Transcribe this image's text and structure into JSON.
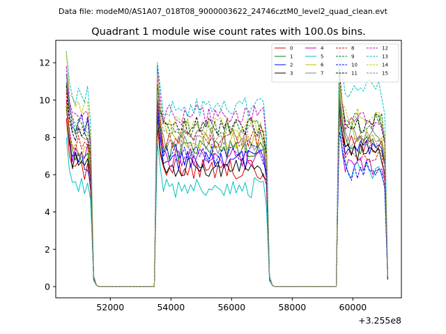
{
  "chart_data": {
    "type": "line",
    "suptitle": "Data file: modeM0/AS1A07_018T08_9000003622_24746cztM0_level2_quad_clean.evt",
    "title": "Quadrant 1 module wise count rates with 100.0s bins.",
    "xlabel": "",
    "ylabel": "",
    "x_offset_label": "+3.255e8",
    "xlim": [
      50200,
      61600
    ],
    "ylim": [
      -0.6,
      13.2
    ],
    "xticks": [
      52000,
      54000,
      56000,
      58000,
      60000
    ],
    "xtick_labels": [
      "52000",
      "54000",
      "56000",
      "58000",
      "60000"
    ],
    "yticks": [
      0,
      2,
      4,
      6,
      8,
      10,
      12
    ],
    "ytick_labels": [
      "0",
      "2",
      "4",
      "6",
      "8",
      "10",
      "12"
    ],
    "bin_seconds": 100,
    "time_range": [
      50550,
      61150
    ],
    "segments": [
      [
        50550,
        51350
      ],
      [
        53550,
        57150
      ],
      [
        59550,
        61050
      ]
    ],
    "segment_levels": [
      [
        6.2,
        6.3,
        7.6
      ],
      [
        7.2,
        7.3,
        7.6
      ],
      [
        6.7,
        6.8,
        7.4
      ],
      [
        6.7,
        6.4,
        7.2
      ],
      [
        7.2,
        6.9,
        6.5
      ],
      [
        5.5,
        5.3,
        6.3
      ],
      [
        7.3,
        7.8,
        8.3
      ],
      [
        8.2,
        7.6,
        8.1
      ],
      [
        7.6,
        7.9,
        6.9
      ],
      [
        8.6,
        8.4,
        8.8
      ],
      [
        8.8,
        7.1,
        6.2
      ],
      [
        8.2,
        8.6,
        8.7
      ],
      [
        9.1,
        9.2,
        8.9
      ],
      [
        10.2,
        9.6,
        10.6
      ],
      [
        9.6,
        8.6,
        9.1
      ],
      [
        8.6,
        8.1,
        7.8
      ]
    ],
    "series": [
      {
        "name": "0",
        "color": "#dd0000",
        "dash": "solid"
      },
      {
        "name": "1",
        "color": "#007f00",
        "dash": "solid"
      },
      {
        "name": "2",
        "color": "#0000ff",
        "dash": "solid"
      },
      {
        "name": "3",
        "color": "#000000",
        "dash": "solid"
      },
      {
        "name": "4",
        "color": "#bf00bf",
        "dash": "solid"
      },
      {
        "name": "5",
        "color": "#00bfbf",
        "dash": "solid"
      },
      {
        "name": "6",
        "color": "#bfbf00",
        "dash": "solid"
      },
      {
        "name": "7",
        "color": "#808080",
        "dash": "solid"
      },
      {
        "name": "8",
        "color": "#dd0000",
        "dash": "dashed"
      },
      {
        "name": "9",
        "color": "#007f00",
        "dash": "dashed"
      },
      {
        "name": "10",
        "color": "#0000ff",
        "dash": "dashed"
      },
      {
        "name": "11",
        "color": "#000000",
        "dash": "dashed"
      },
      {
        "name": "12",
        "color": "#bf00bf",
        "dash": "dashed"
      },
      {
        "name": "13",
        "color": "#00bfbf",
        "dash": "dashed"
      },
      {
        "name": "14",
        "color": "#bfbf00",
        "dash": "dashed"
      },
      {
        "name": "15",
        "color": "#808080",
        "dash": "dashed"
      }
    ],
    "legend_location": "top-right",
    "legend_columns": 4
  }
}
